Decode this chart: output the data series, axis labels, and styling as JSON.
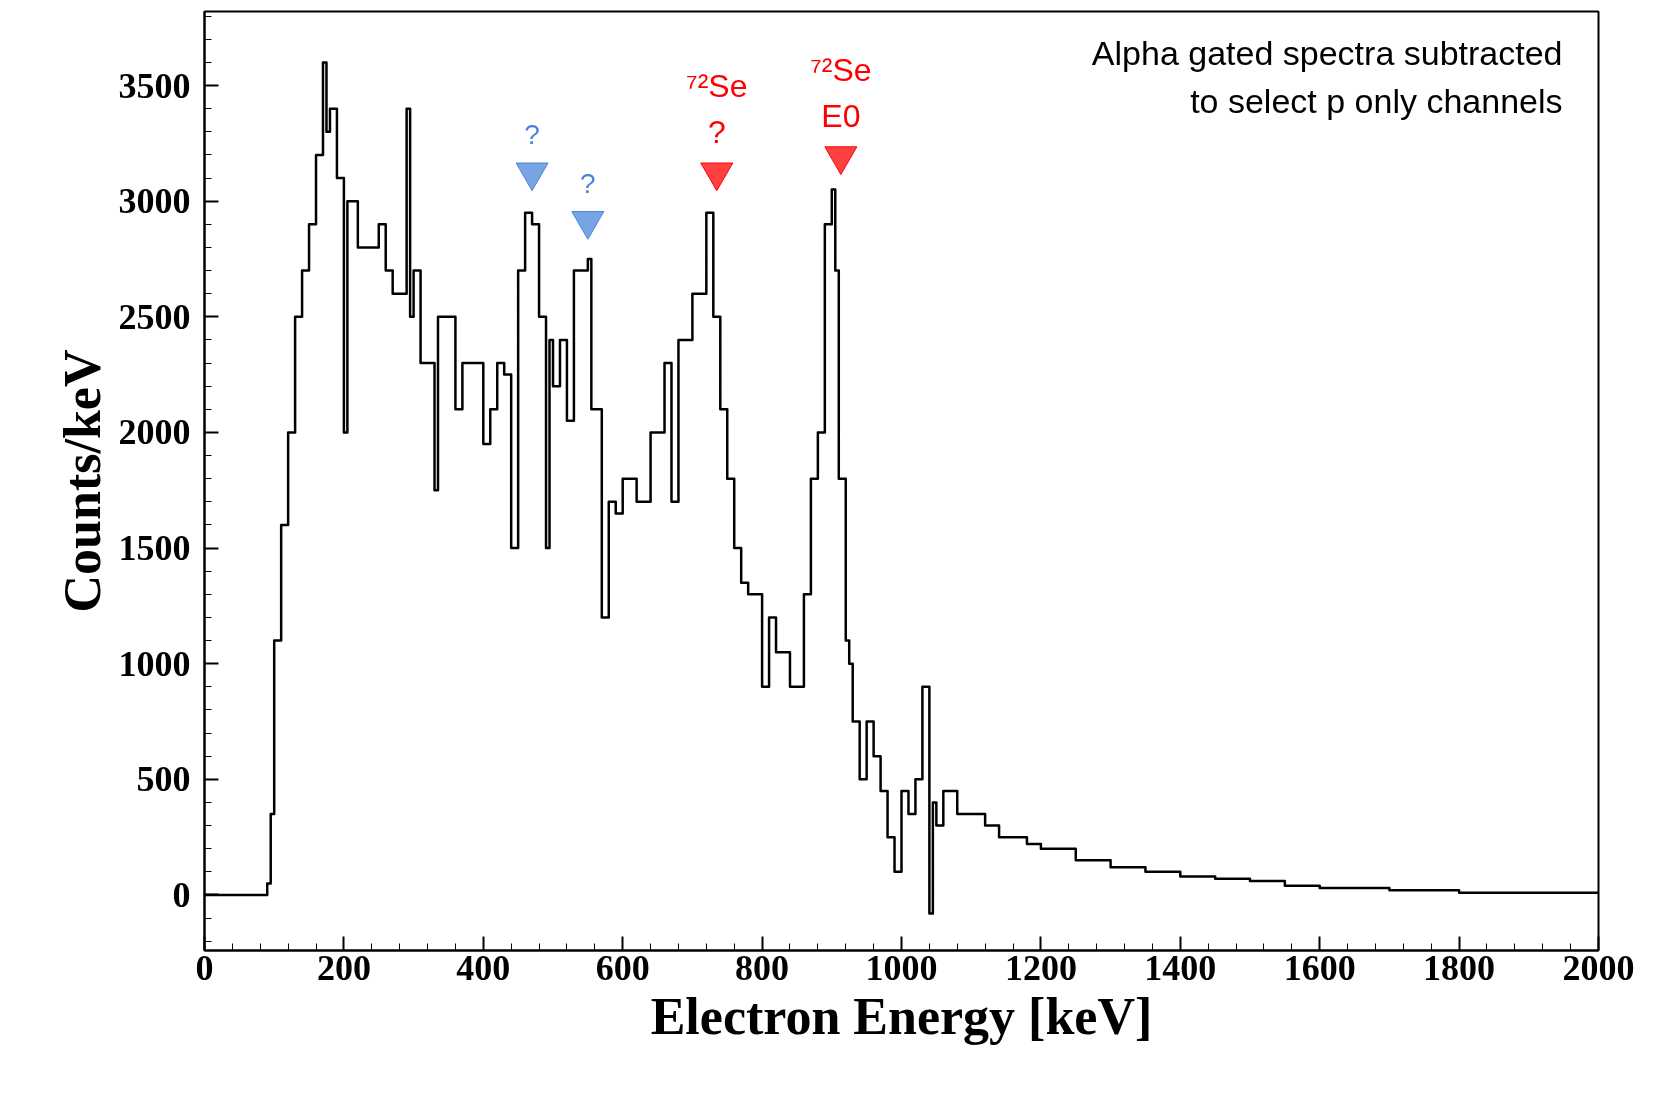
{
  "chart_data": {
    "type": "step",
    "xlabel": "Electron Energy [keV]",
    "ylabel": "Counts/keV",
    "series": [
      {
        "color": "#000000",
        "x": [
          0,
          90,
          95,
          100,
          110,
          120,
          130,
          140,
          150,
          160,
          170,
          175,
          180,
          190,
          200,
          205,
          210,
          220,
          230,
          250,
          260,
          270,
          280,
          290,
          295,
          300,
          310,
          330,
          335,
          340,
          360,
          370,
          380,
          400,
          410,
          420,
          430,
          440,
          450,
          460,
          470,
          480,
          490,
          495,
          500,
          510,
          520,
          530,
          550,
          555,
          570,
          580,
          590,
          600,
          620,
          640,
          660,
          670,
          680,
          700,
          720,
          730,
          740,
          750,
          760,
          770,
          780,
          800,
          810,
          820,
          840,
          860,
          870,
          880,
          890,
          900,
          905,
          910,
          920,
          925,
          930,
          940,
          950,
          960,
          970,
          980,
          990,
          1000,
          1010,
          1020,
          1030,
          1040,
          1045,
          1050,
          1060,
          1080,
          1100,
          1120,
          1140,
          1160,
          1180,
          1200,
          1250,
          1300,
          1350,
          1400,
          1450,
          1500,
          1550,
          1600,
          1650,
          1700,
          1750,
          1800,
          1900,
          2000
        ],
        "values": [
          0,
          50,
          350,
          1100,
          1600,
          2000,
          2500,
          2700,
          2900,
          3200,
          3600,
          3300,
          3400,
          3100,
          2000,
          3000,
          3000,
          2800,
          2800,
          2900,
          2700,
          2600,
          2600,
          3400,
          2500,
          2700,
          2300,
          1750,
          2500,
          2500,
          2100,
          2300,
          2300,
          1950,
          2100,
          2300,
          2250,
          1500,
          2700,
          2950,
          2900,
          2500,
          1500,
          2400,
          2200,
          2400,
          2050,
          2700,
          2750,
          2100,
          1200,
          1700,
          1650,
          1800,
          1700,
          2000,
          2300,
          1700,
          2400,
          2600,
          2950,
          2500,
          2100,
          1800,
          1500,
          1350,
          1300,
          900,
          1200,
          1050,
          900,
          1300,
          1800,
          2000,
          2900,
          3050,
          2700,
          1800,
          1100,
          1000,
          750,
          500,
          750,
          600,
          450,
          250,
          100,
          450,
          350,
          500,
          900,
          -80,
          400,
          300,
          450,
          350,
          350,
          300,
          250,
          250,
          220,
          200,
          150,
          120,
          100,
          80,
          70,
          60,
          40,
          30,
          30,
          20,
          20,
          10,
          10,
          10
        ]
      },
      {
        "type": "scatter",
        "marker": "triangle",
        "color": "#4a86d8",
        "x": [
          470,
          550
        ],
        "values": [
          3125,
          2915
        ]
      },
      {
        "type": "scatter",
        "marker": "triangle",
        "color": "#ff0000",
        "x": [
          735,
          913
        ],
        "values": [
          3125,
          3195
        ]
      }
    ],
    "xlim": [
      0,
      2000
    ],
    "xticks": [
      0,
      200,
      400,
      600,
      800,
      1000,
      1200,
      1400,
      1600,
      1800,
      2000
    ],
    "ylim": [
      -240,
      3820
    ],
    "yticks": [
      0,
      500,
      1000,
      1500,
      2000,
      2500,
      3000,
      3500
    ],
    "grid": false,
    "annotations": [
      {
        "text": "?",
        "x": 470,
        "y": 3125
      },
      {
        "text": "?",
        "x": 550,
        "y": 2915
      },
      {
        "text": "⁷²Se\n?",
        "x": 735,
        "y": 3125
      },
      {
        "text": "⁷²Se\nE0",
        "x": 913,
        "y": 3195
      },
      "Alpha gated spectra subtracted\nto select p only channels"
    ]
  }
}
